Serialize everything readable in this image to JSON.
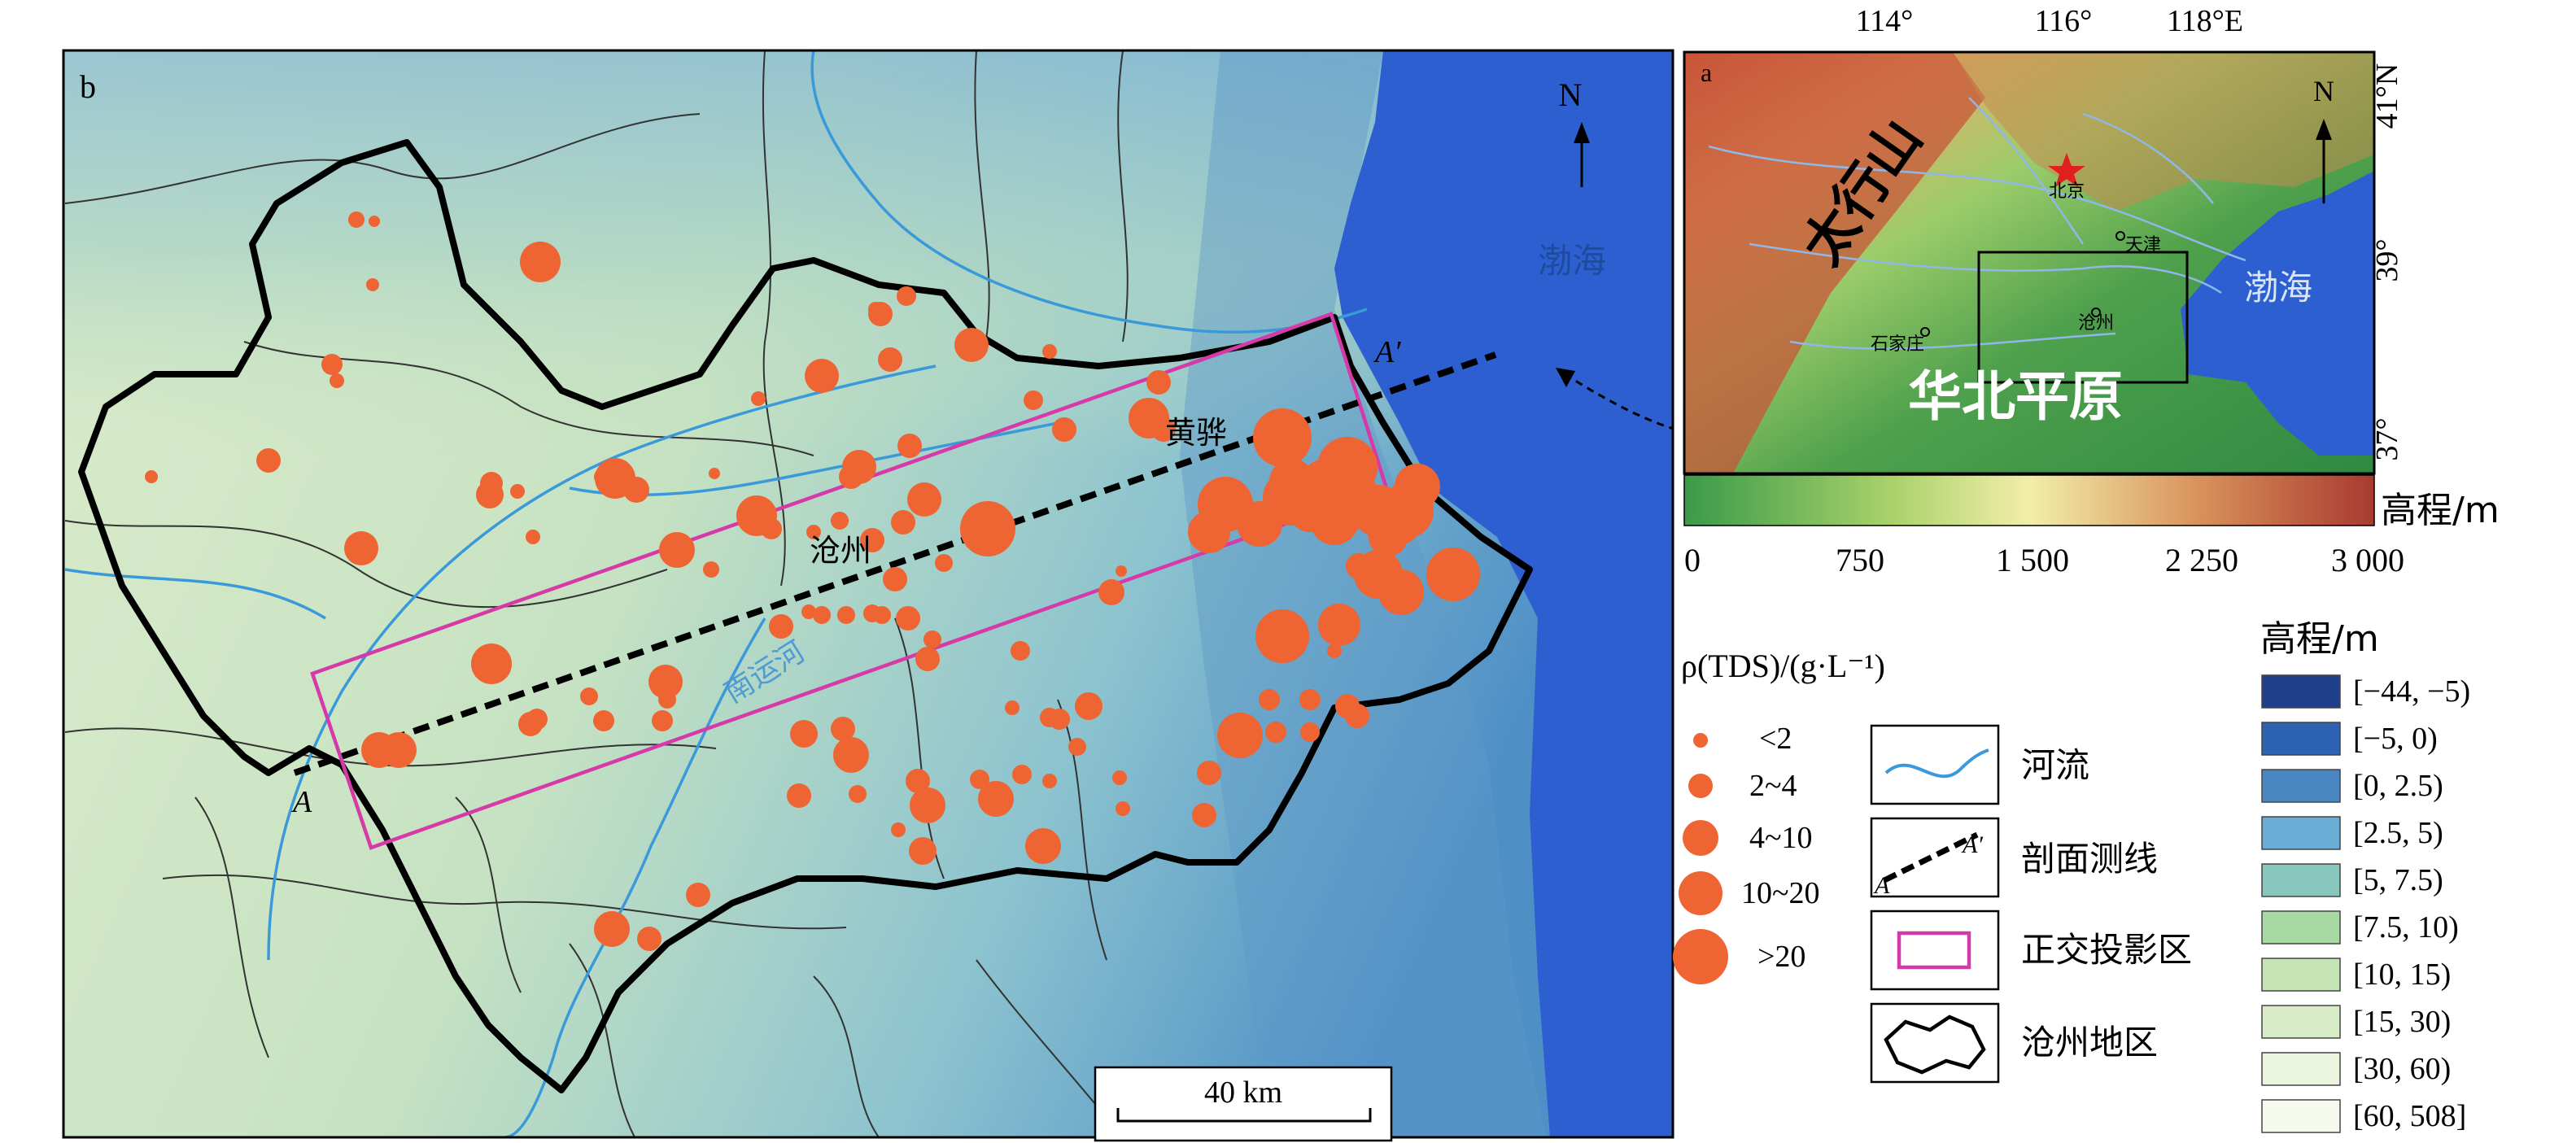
{
  "main_map": {
    "panel_label": "b",
    "north": "N",
    "sea_label": "渤海",
    "city_cangzhou": "沧州",
    "city_huanghua": "黄骅",
    "river_label": "南运河",
    "profile_start": "A",
    "profile_end": "A′",
    "scale_bar": "40 km",
    "colors": {
      "sea": "#2d5fd0",
      "boundary": "#000000",
      "river": "#3a9ad9",
      "projection_box": "#d63aa8",
      "wells": "#ee6432"
    }
  },
  "inset_map": {
    "panel_label": "a",
    "north": "N",
    "longitude_ticks": [
      "114°",
      "116°",
      "118°E"
    ],
    "latitude_ticks": [
      "41°N",
      "39°",
      "37°"
    ],
    "mountain_label": "太行山",
    "plain_label": "华北平原",
    "sea_label": "渤海",
    "cities": [
      "北京",
      "天津",
      "沧州",
      "石家庄"
    ],
    "colorbar": {
      "title": "高程/m",
      "ticks": [
        "0",
        "750",
        "1 500",
        "2 250",
        "3 000"
      ]
    }
  },
  "tds_legend": {
    "title": "ρ(TDS)/(g·L⁻¹)",
    "classes": [
      "<2",
      "2~4",
      "4~10",
      "10~20",
      ">20"
    ]
  },
  "symbol_legend": {
    "items": [
      "河流",
      "剖面测线",
      "正交投影区",
      "沧州地区"
    ],
    "profile_a": "A",
    "profile_a_prime": "A′"
  },
  "elevation_legend": {
    "title": "高程/m",
    "classes": [
      {
        "label": "[−44, −5)",
        "color": "#1f3f8a"
      },
      {
        "label": "[−5, 0)",
        "color": "#2e63b3"
      },
      {
        "label": "[0, 2.5)",
        "color": "#4a87c2"
      },
      {
        "label": "[2.5, 5)",
        "color": "#6aaed6"
      },
      {
        "label": "[5, 7.5)",
        "color": "#87c5bd"
      },
      {
        "label": "[7.5, 10)",
        "color": "#a8d8a4"
      },
      {
        "label": "[10, 15)",
        "color": "#c5e4b6"
      },
      {
        "label": "[15, 30)",
        "color": "#d8ecc8"
      },
      {
        "label": "[30, 60)",
        "color": "#eaf4de"
      },
      {
        "label": "[60, 508]",
        "color": "#f6faee"
      }
    ]
  }
}
